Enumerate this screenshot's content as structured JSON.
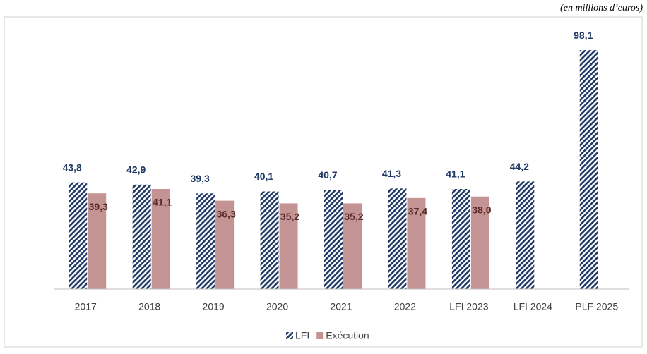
{
  "chart_data": {
    "type": "bar",
    "subtitle": "(en millions d’euros)",
    "categories": [
      "2017",
      "2018",
      "2019",
      "2020",
      "2021",
      "2022",
      "LFI 2023",
      "LFI 2024",
      "PLF 2025"
    ],
    "series": [
      {
        "name": "LFI",
        "color": "#1f3864",
        "values": [
          43.8,
          42.9,
          39.3,
          40.1,
          40.7,
          41.3,
          41.1,
          44.2,
          98.1
        ],
        "value_labels": [
          "43,8",
          "42,9",
          "39,3",
          "40,1",
          "40,7",
          "41,3",
          "41,1",
          "44,2",
          "98,1"
        ]
      },
      {
        "name": "Exécution",
        "color": "#c49394",
        "values": [
          39.3,
          41.1,
          36.3,
          35.2,
          35.2,
          37.4,
          38.0,
          null,
          null
        ],
        "value_labels": [
          "39,3",
          "41,1",
          "36,3",
          "35,2",
          "35,2",
          "37,4",
          "38,0",
          null,
          null
        ]
      }
    ],
    "ylim": [
      0,
      110
    ],
    "legend": "bottom"
  }
}
